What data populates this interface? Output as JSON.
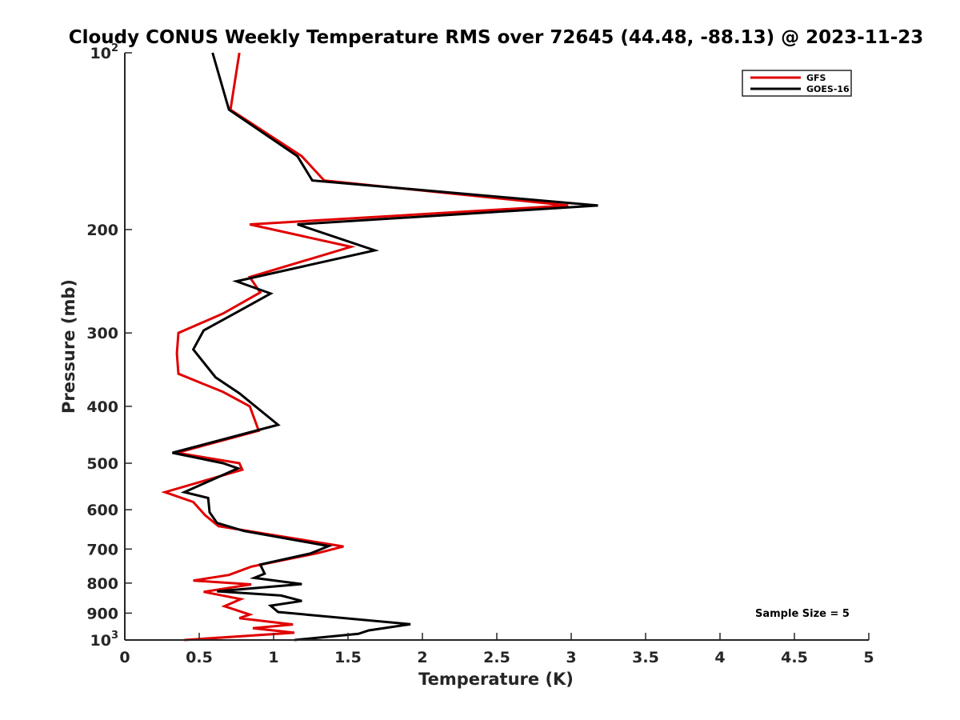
{
  "chart_data": {
    "type": "line",
    "title": "Cloudy CONUS Weekly Temperature RMS over 72645 (44.48, -88.13) @ 2023-11-23",
    "xlabel": "Temperature (K)",
    "ylabel": "Pressure (mb)",
    "xlim": [
      0,
      5
    ],
    "ylim": [
      100,
      1000
    ],
    "y_scale": "log",
    "y_reversed": true,
    "xticks": [
      0,
      0.5,
      1,
      1.5,
      2,
      2.5,
      3,
      3.5,
      4,
      4.5,
      5
    ],
    "xtick_labels": [
      "0",
      "0.5",
      "1",
      "1.5",
      "2",
      "2.5",
      "3",
      "3.5",
      "4",
      "4.5",
      "5"
    ],
    "yticks": [
      {
        "value": 100,
        "label": "10",
        "exp": "2"
      },
      {
        "value": 200,
        "label": "200",
        "exp": ""
      },
      {
        "value": 300,
        "label": "300",
        "exp": ""
      },
      {
        "value": 400,
        "label": "400",
        "exp": ""
      },
      {
        "value": 500,
        "label": "500",
        "exp": ""
      },
      {
        "value": 600,
        "label": "600",
        "exp": ""
      },
      {
        "value": 700,
        "label": "700",
        "exp": ""
      },
      {
        "value": 800,
        "label": "800",
        "exp": ""
      },
      {
        "value": 900,
        "label": "900",
        "exp": ""
      },
      {
        "value": 1000,
        "label": "10",
        "exp": "3"
      }
    ],
    "grid": false,
    "legend_position": "top-right",
    "annotation": "Sample Size = 5",
    "series": [
      {
        "name": "GFS",
        "color": "#e00000",
        "points": [
          [
            0.77,
            100
          ],
          [
            0.71,
            125
          ],
          [
            1.19,
            150
          ],
          [
            1.34,
            165
          ],
          [
            2.98,
            182
          ],
          [
            0.84,
            196
          ],
          [
            1.52,
            214
          ],
          [
            0.84,
            241
          ],
          [
            0.91,
            256
          ],
          [
            0.66,
            278
          ],
          [
            0.36,
            300
          ],
          [
            0.35,
            325
          ],
          [
            0.36,
            352
          ],
          [
            0.66,
            378
          ],
          [
            0.84,
            400
          ],
          [
            0.9,
            440
          ],
          [
            0.35,
            480
          ],
          [
            0.77,
            500
          ],
          [
            0.79,
            513
          ],
          [
            0.27,
            560
          ],
          [
            0.46,
            582
          ],
          [
            0.54,
            613
          ],
          [
            0.63,
            640
          ],
          [
            1.47,
            693
          ],
          [
            1.29,
            712
          ],
          [
            0.85,
            750
          ],
          [
            0.7,
            775
          ],
          [
            0.46,
            792
          ],
          [
            0.85,
            804
          ],
          [
            0.53,
            828
          ],
          [
            0.78,
            852
          ],
          [
            0.67,
            876
          ],
          [
            0.84,
            905
          ],
          [
            0.77,
            918
          ],
          [
            1.13,
            941
          ],
          [
            0.86,
            955
          ],
          [
            1.14,
            972
          ],
          [
            0.4,
            1000
          ]
        ]
      },
      {
        "name": "GOES-16",
        "color": "#000000",
        "points": [
          [
            0.59,
            100
          ],
          [
            0.7,
            125
          ],
          [
            1.16,
            150
          ],
          [
            1.26,
            165
          ],
          [
            3.18,
            182
          ],
          [
            1.16,
            196
          ],
          [
            1.68,
            217
          ],
          [
            0.75,
            245
          ],
          [
            0.98,
            257
          ],
          [
            0.76,
            276
          ],
          [
            0.53,
            297
          ],
          [
            0.46,
            320
          ],
          [
            0.61,
            357
          ],
          [
            0.77,
            380
          ],
          [
            1.03,
            430
          ],
          [
            0.32,
            480
          ],
          [
            0.66,
            500
          ],
          [
            0.76,
            510
          ],
          [
            0.4,
            560
          ],
          [
            0.56,
            573
          ],
          [
            0.57,
            606
          ],
          [
            0.62,
            632
          ],
          [
            0.8,
            652
          ],
          [
            1.37,
            692
          ],
          [
            1.25,
            712
          ],
          [
            0.91,
            744
          ],
          [
            0.94,
            771
          ],
          [
            0.87,
            784
          ],
          [
            1.19,
            803
          ],
          [
            0.62,
            826
          ],
          [
            1.05,
            840
          ],
          [
            1.19,
            858
          ],
          [
            0.98,
            874
          ],
          [
            1.03,
            896
          ],
          [
            1.92,
            940
          ],
          [
            1.64,
            963
          ],
          [
            1.57,
            976
          ],
          [
            1.14,
            1000
          ]
        ]
      }
    ]
  }
}
